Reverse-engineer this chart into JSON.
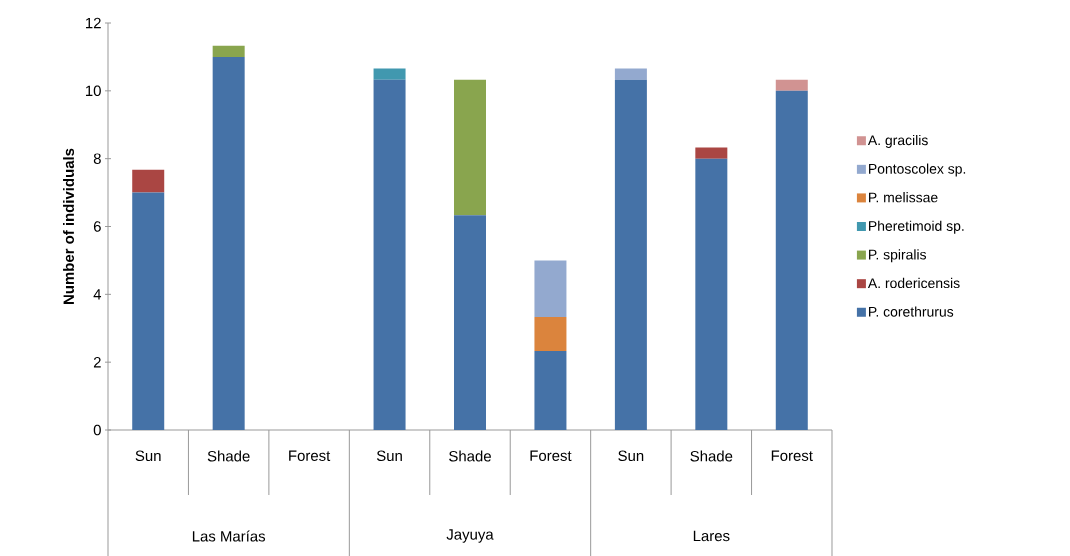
{
  "chart_data": {
    "type": "bar",
    "stacked": true,
    "ylabel": "Number of individuals",
    "categories": [
      "Sun",
      "Shade",
      "Forest",
      "Sun",
      "Shade",
      "Forest",
      "Sun",
      "Shade",
      "Forest"
    ],
    "annotations": [
      "Las Marías",
      "Jayuya",
      "Lares"
    ],
    "ylim": [
      0,
      12
    ],
    "yticks": [
      0,
      2,
      4,
      6,
      8,
      10,
      12
    ],
    "grid": false,
    "legend": "right",
    "series": [
      {
        "name": "P. corethrurus",
        "color": "#4572a7",
        "values": [
          7,
          11,
          0,
          10.33,
          6.33,
          2.33,
          10.33,
          8,
          10
        ]
      },
      {
        "name": "A. rodericensis",
        "color": "#aa4643",
        "values": [
          0.67,
          0,
          0,
          0,
          0,
          0,
          0,
          0.33,
          0
        ]
      },
      {
        "name": "P. spiralis",
        "color": "#89a54e",
        "values": [
          0,
          0.33,
          0,
          0,
          4,
          0,
          0,
          0,
          0
        ]
      },
      {
        "name": "Pheretimoid sp.",
        "color": "#4198af",
        "values": [
          0,
          0,
          0,
          0.33,
          0,
          0,
          0,
          0,
          0
        ]
      },
      {
        "name": "P. melissae",
        "color": "#db843d",
        "values": [
          0,
          0,
          0,
          0,
          0,
          1,
          0,
          0,
          0
        ]
      },
      {
        "name": "Pontoscolex sp.",
        "color": "#93a9cf",
        "values": [
          0,
          0,
          0,
          0,
          0,
          1.67,
          0.33,
          0,
          0
        ]
      },
      {
        "name": "A. gracilis",
        "color": "#d19392",
        "values": [
          0,
          0,
          0,
          0,
          0,
          0,
          0,
          0,
          0.33
        ]
      }
    ]
  }
}
